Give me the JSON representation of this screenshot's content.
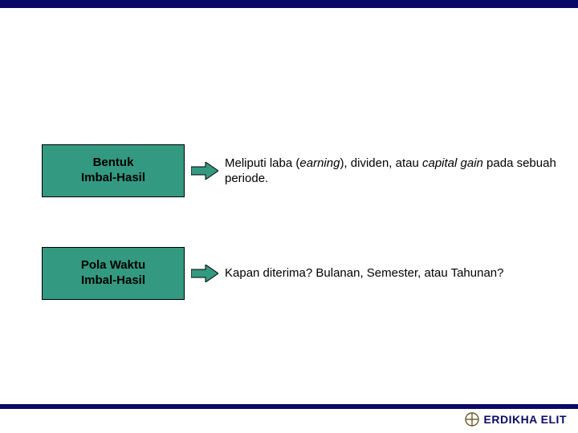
{
  "colors": {
    "navy": "#0a0a66",
    "teal": "#339980",
    "black": "#000000",
    "white": "#ffffff",
    "logoStroke": "#6b5a2a"
  },
  "layout": {
    "topBarHeight": 10,
    "bottomBarHeight": 6,
    "bottomBarY": 504,
    "boxFontSize": 15,
    "descFontSize": 15,
    "footerFontSize": 14
  },
  "rows": [
    {
      "boxLine1": "Bentuk",
      "boxLine2": "Imbal-Hasil",
      "descHtmlParts": [
        {
          "text": "Meliputi laba (",
          "italic": false
        },
        {
          "text": "earning",
          "italic": true
        },
        {
          "text": "), dividen, atau ",
          "italic": false
        },
        {
          "text": "capital gain",
          "italic": true
        },
        {
          "text": " pada sebuah periode.",
          "italic": false
        }
      ]
    },
    {
      "boxLine1": "Pola Waktu",
      "boxLine2": "Imbal-Hasil",
      "descHtmlParts": [
        {
          "text": "Kapan diterima? Bulanan, Semester, atau Tahunan?",
          "italic": false
        }
      ]
    }
  ],
  "footer": {
    "brand": "ERDIKHA ELIT"
  },
  "arrow": {
    "fill": "#339980",
    "stroke": "#000000",
    "width": 34,
    "height": 22
  }
}
